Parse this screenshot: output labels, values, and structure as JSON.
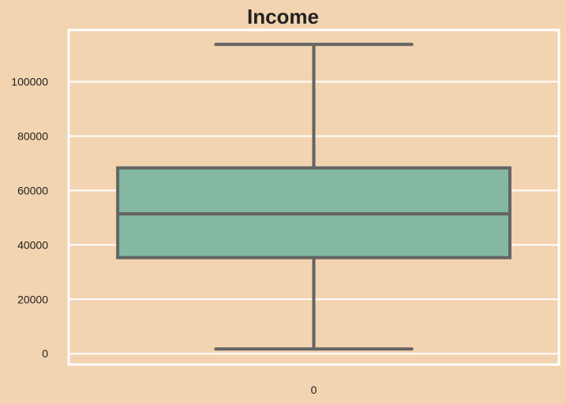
{
  "chart_data": {
    "type": "box",
    "title": "Income",
    "xlabel": "",
    "ylabel": "",
    "categories": [
      "0"
    ],
    "series": [
      {
        "whisker_low": 1730,
        "q1": 35300,
        "median": 51400,
        "q3": 68300,
        "whisker_high": 113700
      }
    ],
    "ylim": [
      -4000,
      119000
    ],
    "yticks": [
      0,
      20000,
      40000,
      60000,
      80000,
      100000
    ],
    "ytick_labels": [
      "0",
      "20000",
      "40000",
      "60000",
      "80000",
      "100000"
    ],
    "grid": true,
    "legend": "none"
  },
  "colors": {
    "background": "#F3D4B0",
    "plot_background": "#F3D4B0",
    "grid": "#FFFFFF",
    "box_fill": "#84B8A3",
    "box_edge": "#646464"
  }
}
